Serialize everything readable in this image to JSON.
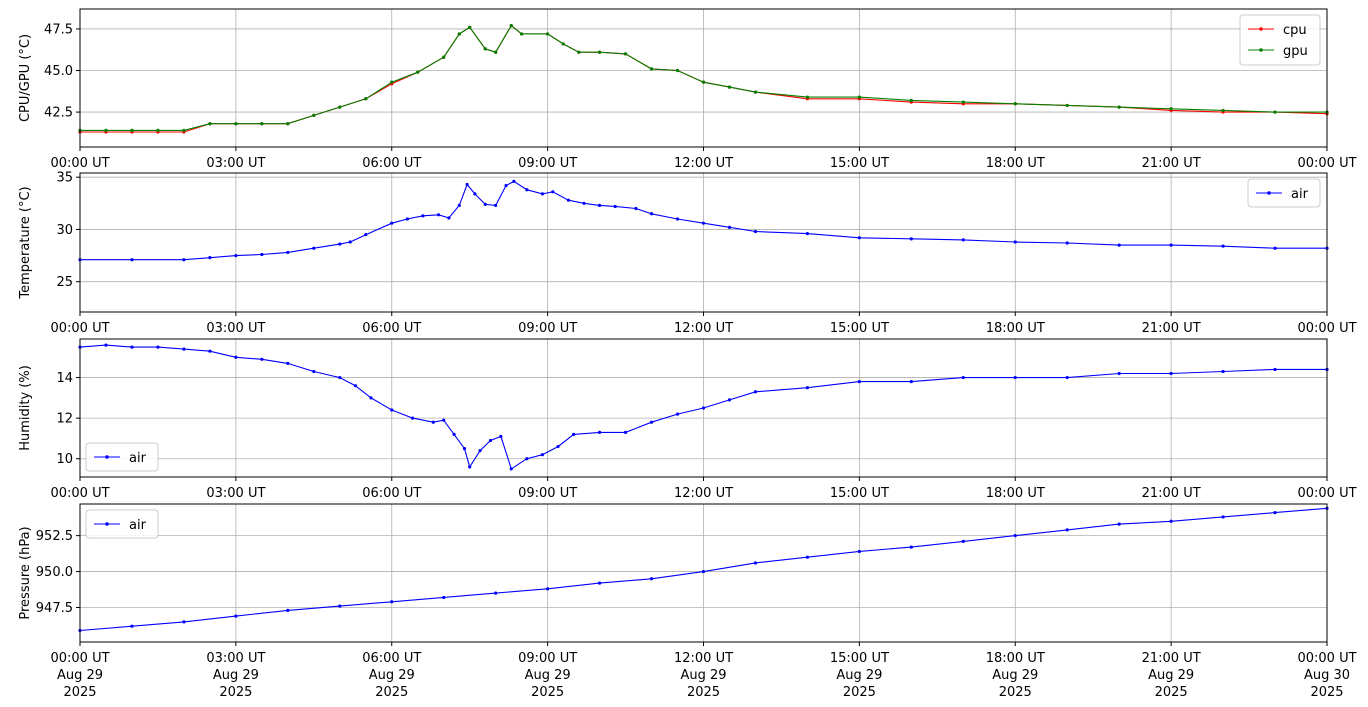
{
  "x_ticks": [
    "00:00 UT",
    "03:00 UT",
    "06:00 UT",
    "09:00 UT",
    "12:00 UT",
    "15:00 UT",
    "18:00 UT",
    "21:00 UT",
    "00:00 UT"
  ],
  "x_date_lines": [
    [
      "Aug 29",
      "2025"
    ],
    [
      "Aug 29",
      "2025"
    ],
    [
      "Aug 29",
      "2025"
    ],
    [
      "Aug 29",
      "2025"
    ],
    [
      "Aug 29",
      "2025"
    ],
    [
      "Aug 29",
      "2025"
    ],
    [
      "Aug 29",
      "2025"
    ],
    [
      "Aug 29",
      "2025"
    ],
    [
      "Aug 30",
      "2025"
    ]
  ],
  "colors": {
    "cpu": "#ff0000",
    "gpu": "#008000",
    "air": "#0000ff",
    "grid": "#b0b0b0"
  },
  "chart_data": [
    {
      "type": "line",
      "ylabel": "CPU/GPU (°C)",
      "x_range_hours": [
        0,
        24
      ],
      "ylim": [
        40.4,
        48.7
      ],
      "yticks": [
        42.5,
        45.0,
        47.5
      ],
      "ytick_labels": [
        "42.5",
        "45.0",
        "47.5"
      ],
      "grid": true,
      "legend_loc": "upper right",
      "series": [
        {
          "name": "cpu",
          "color": "#ff0000",
          "points": [
            [
              0,
              41.3
            ],
            [
              0.5,
              41.3
            ],
            [
              1,
              41.3
            ],
            [
              1.5,
              41.3
            ],
            [
              2,
              41.3
            ],
            [
              2.5,
              41.8
            ],
            [
              3,
              41.8
            ],
            [
              3.5,
              41.8
            ],
            [
              4,
              41.8
            ],
            [
              4.5,
              42.3
            ],
            [
              5,
              42.8
            ],
            [
              5.5,
              43.3
            ],
            [
              6,
              44.2
            ],
            [
              6.5,
              44.9
            ],
            [
              7,
              45.8
            ],
            [
              7.3,
              47.2
            ],
            [
              7.5,
              47.6
            ],
            [
              7.8,
              46.3
            ],
            [
              8,
              46.1
            ],
            [
              8.3,
              47.7
            ],
            [
              8.5,
              47.2
            ],
            [
              9,
              47.2
            ],
            [
              9.3,
              46.6
            ],
            [
              9.6,
              46.1
            ],
            [
              10,
              46.1
            ],
            [
              10.5,
              46.0
            ],
            [
              11,
              45.1
            ],
            [
              11.5,
              45.0
            ],
            [
              12,
              44.3
            ],
            [
              12.5,
              44.0
            ],
            [
              13,
              43.7
            ],
            [
              14,
              43.3
            ],
            [
              15,
              43.3
            ],
            [
              16,
              43.1
            ],
            [
              17,
              43.0
            ],
            [
              18,
              43.0
            ],
            [
              19,
              42.9
            ],
            [
              20,
              42.8
            ],
            [
              21,
              42.6
            ],
            [
              22,
              42.5
            ],
            [
              23,
              42.5
            ],
            [
              24,
              42.4
            ]
          ]
        },
        {
          "name": "gpu",
          "color": "#008000",
          "points": [
            [
              0,
              41.4
            ],
            [
              0.5,
              41.4
            ],
            [
              1,
              41.4
            ],
            [
              1.5,
              41.4
            ],
            [
              2,
              41.4
            ],
            [
              2.5,
              41.8
            ],
            [
              3,
              41.8
            ],
            [
              3.5,
              41.8
            ],
            [
              4,
              41.8
            ],
            [
              4.5,
              42.3
            ],
            [
              5,
              42.8
            ],
            [
              5.5,
              43.3
            ],
            [
              6,
              44.3
            ],
            [
              6.5,
              44.9
            ],
            [
              7,
              45.8
            ],
            [
              7.3,
              47.2
            ],
            [
              7.5,
              47.6
            ],
            [
              7.8,
              46.3
            ],
            [
              8,
              46.1
            ],
            [
              8.3,
              47.7
            ],
            [
              8.5,
              47.2
            ],
            [
              9,
              47.2
            ],
            [
              9.3,
              46.6
            ],
            [
              9.6,
              46.1
            ],
            [
              10,
              46.1
            ],
            [
              10.5,
              46.0
            ],
            [
              11,
              45.1
            ],
            [
              11.5,
              45.0
            ],
            [
              12,
              44.3
            ],
            [
              12.5,
              44.0
            ],
            [
              13,
              43.7
            ],
            [
              14,
              43.4
            ],
            [
              15,
              43.4
            ],
            [
              16,
              43.2
            ],
            [
              17,
              43.1
            ],
            [
              18,
              43.0
            ],
            [
              19,
              42.9
            ],
            [
              20,
              42.8
            ],
            [
              21,
              42.7
            ],
            [
              22,
              42.6
            ],
            [
              23,
              42.5
            ],
            [
              24,
              42.5
            ]
          ]
        }
      ]
    },
    {
      "type": "line",
      "ylabel": "Temperature (°C)",
      "x_range_hours": [
        0,
        24
      ],
      "ylim": [
        22.1,
        35.4
      ],
      "yticks": [
        25,
        30,
        35
      ],
      "ytick_labels": [
        "25",
        "30",
        "35"
      ],
      "grid": true,
      "legend_loc": "upper right",
      "series": [
        {
          "name": "air",
          "color": "#0000ff",
          "points": [
            [
              0,
              27.1
            ],
            [
              1,
              27.1
            ],
            [
              2,
              27.1
            ],
            [
              2.5,
              27.3
            ],
            [
              3,
              27.5
            ],
            [
              3.5,
              27.6
            ],
            [
              4,
              27.8
            ],
            [
              4.5,
              28.2
            ],
            [
              5,
              28.6
            ],
            [
              5.2,
              28.8
            ],
            [
              5.5,
              29.5
            ],
            [
              6,
              30.6
            ],
            [
              6.3,
              31.0
            ],
            [
              6.6,
              31.3
            ],
            [
              6.9,
              31.4
            ],
            [
              7.1,
              31.1
            ],
            [
              7.3,
              32.3
            ],
            [
              7.45,
              34.3
            ],
            [
              7.6,
              33.4
            ],
            [
              7.8,
              32.4
            ],
            [
              8.0,
              32.3
            ],
            [
              8.2,
              34.2
            ],
            [
              8.35,
              34.6
            ],
            [
              8.6,
              33.8
            ],
            [
              8.9,
              33.4
            ],
            [
              9.1,
              33.6
            ],
            [
              9.4,
              32.8
            ],
            [
              9.7,
              32.5
            ],
            [
              10,
              32.3
            ],
            [
              10.3,
              32.2
            ],
            [
              10.7,
              32.0
            ],
            [
              11.0,
              31.5
            ],
            [
              11.5,
              31.0
            ],
            [
              12,
              30.6
            ],
            [
              12.5,
              30.2
            ],
            [
              13,
              29.8
            ],
            [
              14,
              29.6
            ],
            [
              15,
              29.2
            ],
            [
              16,
              29.1
            ],
            [
              17,
              29.0
            ],
            [
              18,
              28.8
            ],
            [
              19,
              28.7
            ],
            [
              20,
              28.5
            ],
            [
              21,
              28.5
            ],
            [
              22,
              28.4
            ],
            [
              23,
              28.2
            ],
            [
              24,
              28.2
            ]
          ]
        }
      ]
    },
    {
      "type": "line",
      "ylabel": "Humidity (%)",
      "x_range_hours": [
        0,
        24
      ],
      "ylim": [
        9.1,
        15.9
      ],
      "yticks": [
        10,
        12,
        14
      ],
      "ytick_labels": [
        "10",
        "12",
        "14"
      ],
      "grid": true,
      "legend_loc": "lower left",
      "series": [
        {
          "name": "air",
          "color": "#0000ff",
          "points": [
            [
              0,
              15.5
            ],
            [
              0.5,
              15.6
            ],
            [
              1,
              15.5
            ],
            [
              1.5,
              15.5
            ],
            [
              2,
              15.4
            ],
            [
              2.5,
              15.3
            ],
            [
              3,
              15.0
            ],
            [
              3.5,
              14.9
            ],
            [
              4,
              14.7
            ],
            [
              4.5,
              14.3
            ],
            [
              5,
              14.0
            ],
            [
              5.3,
              13.6
            ],
            [
              5.6,
              13.0
            ],
            [
              6,
              12.4
            ],
            [
              6.4,
              12.0
            ],
            [
              6.8,
              11.8
            ],
            [
              7.0,
              11.9
            ],
            [
              7.2,
              11.2
            ],
            [
              7.4,
              10.5
            ],
            [
              7.5,
              9.6
            ],
            [
              7.7,
              10.4
            ],
            [
              7.9,
              10.9
            ],
            [
              8.1,
              11.1
            ],
            [
              8.3,
              9.5
            ],
            [
              8.6,
              10.0
            ],
            [
              8.9,
              10.2
            ],
            [
              9.2,
              10.6
            ],
            [
              9.5,
              11.2
            ],
            [
              10,
              11.3
            ],
            [
              10.5,
              11.3
            ],
            [
              11,
              11.8
            ],
            [
              11.5,
              12.2
            ],
            [
              12,
              12.5
            ],
            [
              12.5,
              12.9
            ],
            [
              13,
              13.3
            ],
            [
              14,
              13.5
            ],
            [
              15,
              13.8
            ],
            [
              16,
              13.8
            ],
            [
              17,
              14.0
            ],
            [
              18,
              14.0
            ],
            [
              19,
              14.0
            ],
            [
              20,
              14.2
            ],
            [
              21,
              14.2
            ],
            [
              22,
              14.3
            ],
            [
              23,
              14.4
            ],
            [
              24,
              14.4
            ]
          ]
        }
      ]
    },
    {
      "type": "line",
      "ylabel": "Pressure (hPa)",
      "x_range_hours": [
        0,
        24
      ],
      "ylim": [
        945.1,
        954.7
      ],
      "yticks": [
        947.5,
        950.0,
        952.5
      ],
      "ytick_labels": [
        "947.5",
        "950.0",
        "952.5"
      ],
      "grid": true,
      "legend_loc": "upper left",
      "series": [
        {
          "name": "air",
          "color": "#0000ff",
          "points": [
            [
              0,
              945.9
            ],
            [
              1,
              946.2
            ],
            [
              2,
              946.5
            ],
            [
              3,
              946.9
            ],
            [
              4,
              947.3
            ],
            [
              5,
              947.6
            ],
            [
              6,
              947.9
            ],
            [
              7,
              948.2
            ],
            [
              8,
              948.5
            ],
            [
              9,
              948.8
            ],
            [
              10,
              949.2
            ],
            [
              11,
              949.5
            ],
            [
              12,
              950.0
            ],
            [
              13,
              950.6
            ],
            [
              14,
              951.0
            ],
            [
              15,
              951.4
            ],
            [
              16,
              951.7
            ],
            [
              17,
              952.1
            ],
            [
              18,
              952.5
            ],
            [
              19,
              952.9
            ],
            [
              20,
              953.3
            ],
            [
              21,
              953.5
            ],
            [
              22,
              953.8
            ],
            [
              23,
              954.1
            ],
            [
              24,
              954.4
            ]
          ]
        }
      ]
    }
  ]
}
